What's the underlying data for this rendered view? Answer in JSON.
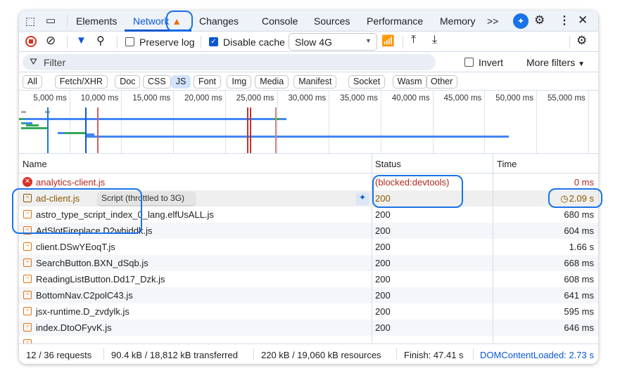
{
  "tabs": [
    {
      "label": "Elements"
    },
    {
      "label": "Network",
      "warning": true
    },
    {
      "label": "Changes"
    },
    {
      "label": "Console"
    },
    {
      "label": "Sources"
    },
    {
      "label": "Performance"
    },
    {
      "label": "Memory"
    }
  ],
  "more_tabs": ">>",
  "toolbar": {
    "preserve_log": "Preserve log",
    "preserve_log_checked": false,
    "disable_cache": "Disable cache",
    "disable_cache_checked": true,
    "throttle": "Slow 4G"
  },
  "filter": {
    "placeholder": "Filter",
    "invert": "Invert",
    "more_filters": "More filters"
  },
  "chips": [
    "All",
    "Fetch/XHR",
    "Doc",
    "CSS",
    "JS",
    "Font",
    "Img",
    "Media",
    "Manifest",
    "Socket",
    "Wasm",
    "Other"
  ],
  "active_chip": "JS",
  "timeline_ticks": [
    "5,000 ms",
    "10,000 ms",
    "15,000 ms",
    "20,000 ms",
    "25,000 ms",
    "30,000 ms",
    "35,000 ms",
    "40,000 ms",
    "45,000 ms",
    "50,000 ms",
    "55,000 ms"
  ],
  "columns": {
    "name": "Name",
    "status": "Status",
    "time": "Time"
  },
  "rows": [
    {
      "name": "analytics-client.js",
      "status": "(blocked:devtools)",
      "time": "0 ms",
      "state": "error"
    },
    {
      "name": "ad-client.js",
      "status": "200",
      "time": "2.09 s",
      "state": "throttled"
    },
    {
      "name": "astro_type_script_index_0_lang.elfUsALL.js",
      "status": "200",
      "time": "680 ms"
    },
    {
      "name": "AdSlotFireplace.D2whiddk.js",
      "status": "200",
      "time": "604 ms"
    },
    {
      "name": "client.DSwYEoqT.js",
      "status": "200",
      "time": "1.66 s"
    },
    {
      "name": "SearchButton.BXN_dSqb.js",
      "status": "200",
      "time": "668 ms"
    },
    {
      "name": "ReadingListButton.Dd17_Dzk.js",
      "status": "200",
      "time": "608 ms"
    },
    {
      "name": "BottomNav.C2polC43.js",
      "status": "200",
      "time": "641 ms"
    },
    {
      "name": "jsx-runtime.D_zvdylk.js",
      "status": "200",
      "time": "595 ms"
    },
    {
      "name": "index.DtoOFyvK.js",
      "status": "200",
      "time": "646 ms"
    }
  ],
  "tooltip": "Script (throttled to 3G)",
  "footer": {
    "requests": "12 / 36 requests",
    "transferred": "90.4 kB / 18,812 kB transferred",
    "resources": "220 kB / 19,060 kB resources",
    "finish": "Finish: 47.41 s",
    "dcl": "DOMContentLoaded: 2.73 s"
  },
  "colors": {
    "accent": "#0b57d0",
    "error": "#b3261e",
    "throttled": "#8a5a00",
    "annotation": "#1a73e8"
  }
}
